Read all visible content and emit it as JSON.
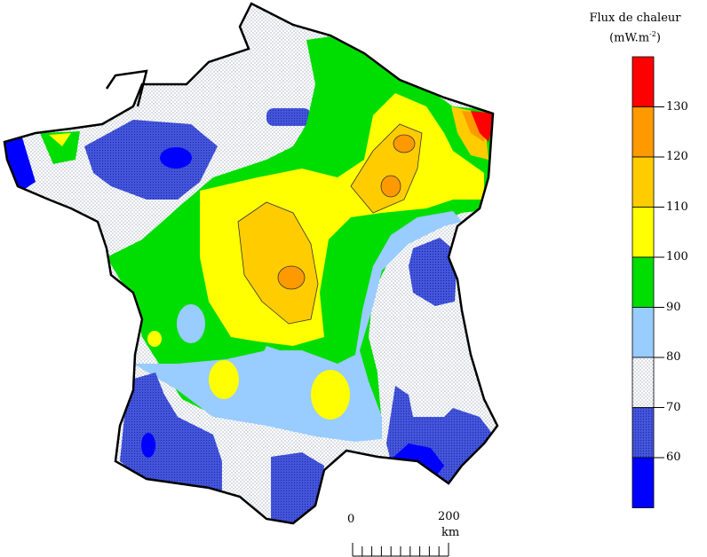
{
  "legend": {
    "title_line1": "Flux de chaleur",
    "title_line2": "(mW.m",
    "title_sup": "-2",
    "title_close": ")",
    "classes": [
      {
        "from": 130,
        "to": 140,
        "color": "#ff0000",
        "pattern": false
      },
      {
        "from": 120,
        "to": 130,
        "color": "#ff9900",
        "pattern": false
      },
      {
        "from": 110,
        "to": 120,
        "color": "#ffcc00",
        "pattern": false
      },
      {
        "from": 100,
        "to": 110,
        "color": "#ffff00",
        "pattern": false
      },
      {
        "from": 90,
        "to": 100,
        "color": "#00dd00",
        "pattern": false
      },
      {
        "from": 80,
        "to": 90,
        "color": "#99ccff",
        "pattern": false
      },
      {
        "from": 70,
        "to": 80,
        "color": "#ffffff",
        "pattern": true
      },
      {
        "from": 60,
        "to": 70,
        "color": "#3344dd",
        "pattern": true
      },
      {
        "from": 50,
        "to": 60,
        "color": "#0000ff",
        "pattern": false
      }
    ],
    "ticks": [
      "130",
      "120",
      "110",
      "100",
      "90",
      "80",
      "70",
      "60"
    ]
  },
  "scale": {
    "start_label": "0",
    "end_label": "200",
    "unit": "km",
    "distance_km": 200
  }
}
